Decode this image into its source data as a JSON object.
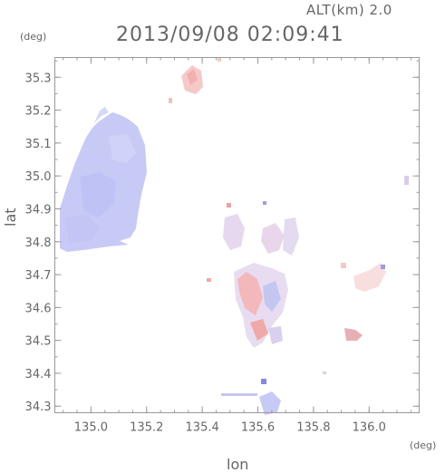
{
  "header": {
    "altitude_label": "ALT(km) 2.0",
    "timestamp": "2013/09/08 02:09:41"
  },
  "axes": {
    "lat_unit": "(deg)",
    "lon_unit": "(deg)",
    "lat_label": "lat",
    "lon_label": "lon",
    "lon_range": [
      134.87,
      136.18
    ],
    "lat_range": [
      34.28,
      35.36
    ],
    "lon_ticks": [
      135.0,
      135.2,
      135.4,
      135.6,
      135.8,
      136.0
    ],
    "lon_tick_labels": [
      "135.0",
      "135.2",
      "135.4",
      "135.6",
      "135.8",
      "136.0"
    ],
    "lat_ticks": [
      34.3,
      34.4,
      34.5,
      34.6,
      34.7,
      34.8,
      34.9,
      35.0,
      35.1,
      35.2,
      35.3
    ],
    "lat_tick_labels": [
      "34.3",
      "34.4",
      "34.5",
      "34.6",
      "34.7",
      "34.8",
      "34.9",
      "35.0",
      "35.1",
      "35.2",
      "35.3"
    ]
  },
  "colors": {
    "axis": "#999999",
    "text": "#666666",
    "positive": "#f08080",
    "negative": "#8080f0",
    "lake": "#c8caf6"
  },
  "chart_data": {
    "type": "heatmap",
    "title": "2013/09/08 02:09:41",
    "xlabel": "lon",
    "ylabel": "lat",
    "xlim": [
      134.87,
      136.18
    ],
    "ylim": [
      34.28,
      35.36
    ],
    "grid": false,
    "clusters": [
      {
        "lon": 135.36,
        "lat": 35.32,
        "sign": "positive"
      },
      {
        "lon": 135.52,
        "lat": 34.84,
        "sign": "mixed"
      },
      {
        "lon": 135.65,
        "lat": 34.84,
        "sign": "mixed"
      },
      {
        "lon": 135.58,
        "lat": 34.63,
        "sign": "mixed"
      },
      {
        "lon": 135.6,
        "lat": 34.52,
        "sign": "mixed"
      },
      {
        "lon": 136.02,
        "lat": 34.7,
        "sign": "positive"
      },
      {
        "lon": 135.93,
        "lat": 34.52,
        "sign": "positive"
      },
      {
        "lon": 135.62,
        "lat": 34.31,
        "sign": "negative"
      },
      {
        "lon": 136.14,
        "lat": 34.98,
        "sign": "negative"
      }
    ]
  }
}
